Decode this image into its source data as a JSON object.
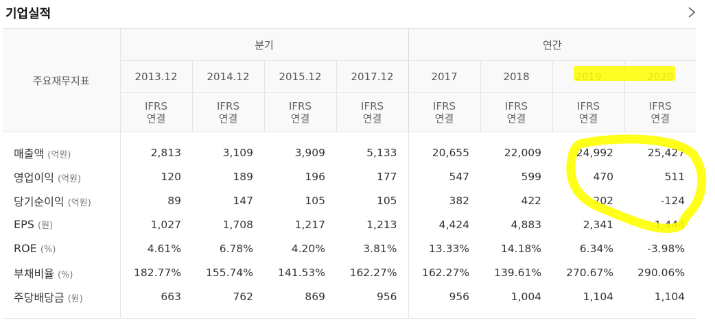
{
  "header": {
    "title": "기업실적",
    "more_icon": "chevron-right-icon"
  },
  "table": {
    "row_header_label": "주요재무지표",
    "groups": [
      {
        "label": "분기"
      },
      {
        "label": "연간"
      }
    ],
    "periods": [
      "2013.12",
      "2014.12",
      "2015.12",
      "2017.12",
      "2017",
      "2018",
      "2019",
      "2020"
    ],
    "basis": {
      "line1": "IFRS",
      "line2": "연결"
    },
    "rows": [
      {
        "name": "매출액",
        "unit": "(억원)",
        "values": [
          "2,813",
          "3,109",
          "3,909",
          "5,133",
          "20,655",
          "22,009",
          "24,992",
          "25,427"
        ]
      },
      {
        "name": "영업이익",
        "unit": "(억원)",
        "values": [
          "120",
          "189",
          "196",
          "177",
          "547",
          "599",
          "470",
          "511"
        ]
      },
      {
        "name": "당기순이익",
        "unit": "(억원)",
        "values": [
          "89",
          "147",
          "105",
          "105",
          "382",
          "422",
          "202",
          "-124"
        ]
      },
      {
        "name": "EPS",
        "unit": "(원)",
        "values": [
          "1,027",
          "1,708",
          "1,217",
          "1,213",
          "4,424",
          "4,883",
          "2,341",
          "-1,444"
        ]
      },
      {
        "name": "ROE",
        "unit": "(%)",
        "values": [
          "4.61%",
          "6.78%",
          "4.20%",
          "3.81%",
          "13.33%",
          "14.18%",
          "6.34%",
          "-3.98%"
        ]
      },
      {
        "name": "부채비율",
        "unit": "(%)",
        "values": [
          "182.77%",
          "155.74%",
          "141.53%",
          "162.27%",
          "162.27%",
          "139.61%",
          "270.67%",
          "290.06%"
        ]
      },
      {
        "name": "주당배당금",
        "unit": "(원)",
        "values": [
          "663",
          "762",
          "869",
          "956",
          "956",
          "1,004",
          "1,104",
          "1,104"
        ]
      }
    ]
  },
  "annotations": {
    "highlight_color": "#ffff00"
  }
}
